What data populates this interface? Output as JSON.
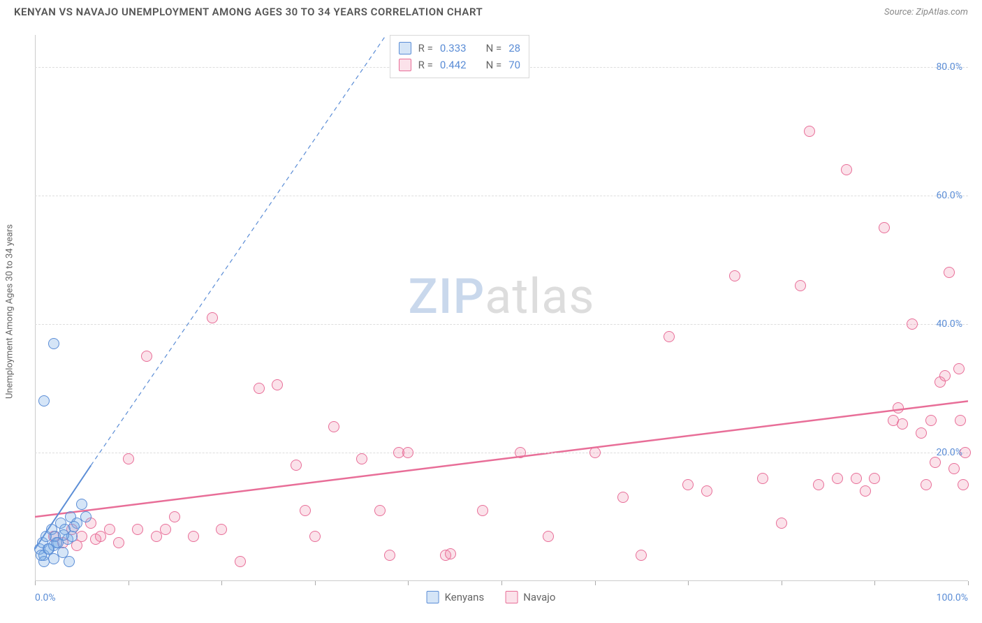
{
  "header": {
    "title": "KENYAN VS NAVAJO UNEMPLOYMENT AMONG AGES 30 TO 34 YEARS CORRELATION CHART",
    "source": "Source: ZipAtlas.com"
  },
  "watermark": {
    "part1": "ZIP",
    "part2": "atlas"
  },
  "chart": {
    "type": "scatter",
    "background_color": "#ffffff",
    "grid_color": "#dddddd",
    "axis_color": "#cccccc",
    "tick_label_color": "#5b8dd6",
    "axis_label_color": "#666666",
    "label_fontsize": 13,
    "tick_fontsize": 14,
    "ylabel": "Unemployment Among Ages 30 to 34 years",
    "xlim": [
      0,
      100
    ],
    "ylim": [
      0,
      85
    ],
    "xticks": [
      0,
      10,
      20,
      30,
      40,
      50,
      60,
      70,
      80,
      90,
      100
    ],
    "yticks": [
      20,
      40,
      60,
      80
    ],
    "ytick_labels": [
      "20.0%",
      "40.0%",
      "60.0%",
      "80.0%"
    ],
    "xtick_label_left": "0.0%",
    "xtick_label_right": "100.0%",
    "marker_radius": 8,
    "marker_stroke_width": 1.2,
    "series": {
      "kenyans": {
        "label": "Kenyans",
        "fill": "rgba(116,168,227,0.30)",
        "stroke": "#5b8dd6",
        "R": "0.333",
        "N": "28",
        "trend": {
          "x1": 0,
          "y1": 5,
          "x2": 6,
          "y2": 18,
          "dash_x2": 40,
          "dash_y2": 90,
          "stroke_width": 2,
          "dash": "6,5"
        },
        "points": [
          [
            0.5,
            5
          ],
          [
            0.8,
            6
          ],
          [
            1,
            4
          ],
          [
            1.2,
            7
          ],
          [
            1.5,
            5
          ],
          [
            1.8,
            8
          ],
          [
            2,
            5.5
          ],
          [
            2.2,
            7
          ],
          [
            2.5,
            6
          ],
          [
            2.8,
            9
          ],
          [
            3,
            4.5
          ],
          [
            3.2,
            8
          ],
          [
            3.5,
            6.5
          ],
          [
            3.8,
            10
          ],
          [
            4,
            7
          ],
          [
            4.5,
            9
          ],
          [
            5,
            12
          ],
          [
            5.5,
            10
          ],
          [
            1,
            3
          ],
          [
            2,
            3.5
          ],
          [
            0.7,
            4
          ],
          [
            1.4,
            5
          ],
          [
            2.3,
            6
          ],
          [
            3.1,
            7.2
          ],
          [
            4.2,
            8.5
          ],
          [
            2,
            37
          ],
          [
            1,
            28
          ],
          [
            3.7,
            3
          ]
        ]
      },
      "navajo": {
        "label": "Navajo",
        "fill": "rgba(235,125,160,0.22)",
        "stroke": "#e86e98",
        "R": "0.442",
        "N": "70",
        "trend": {
          "x1": 0,
          "y1": 10,
          "x2": 100,
          "y2": 28,
          "stroke_width": 2.5
        },
        "points": [
          [
            2,
            7
          ],
          [
            3,
            6
          ],
          [
            4,
            8
          ],
          [
            5,
            7
          ],
          [
            6,
            9
          ],
          [
            7,
            7
          ],
          [
            8,
            8
          ],
          [
            9,
            6
          ],
          [
            10,
            19
          ],
          [
            11,
            8
          ],
          [
            12,
            35
          ],
          [
            13,
            7
          ],
          [
            14,
            8
          ],
          [
            15,
            10
          ],
          [
            17,
            7
          ],
          [
            19,
            41
          ],
          [
            20,
            8
          ],
          [
            22,
            3
          ],
          [
            24,
            30
          ],
          [
            26,
            30.5
          ],
          [
            28,
            18
          ],
          [
            29,
            11
          ],
          [
            30,
            7
          ],
          [
            32,
            24
          ],
          [
            35,
            19
          ],
          [
            37,
            11
          ],
          [
            38,
            4
          ],
          [
            39,
            20
          ],
          [
            40,
            20
          ],
          [
            44,
            4
          ],
          [
            44.5,
            4.2
          ],
          [
            48,
            11
          ],
          [
            52,
            20
          ],
          [
            55,
            7
          ],
          [
            60,
            20
          ],
          [
            63,
            13
          ],
          [
            65,
            4
          ],
          [
            68,
            38
          ],
          [
            70,
            15
          ],
          [
            72,
            14
          ],
          [
            75,
            47.5
          ],
          [
            78,
            16
          ],
          [
            80,
            9
          ],
          [
            82,
            46
          ],
          [
            83,
            70
          ],
          [
            84,
            15
          ],
          [
            86,
            16
          ],
          [
            87,
            64
          ],
          [
            88,
            16
          ],
          [
            89,
            14
          ],
          [
            90,
            16
          ],
          [
            91,
            55
          ],
          [
            92,
            25
          ],
          [
            92.5,
            27
          ],
          [
            93,
            24.5
          ],
          [
            94,
            40
          ],
          [
            95,
            23
          ],
          [
            95.5,
            15
          ],
          [
            96,
            25
          ],
          [
            96.5,
            18.5
          ],
          [
            97,
            31
          ],
          [
            97.5,
            32
          ],
          [
            98,
            48
          ],
          [
            98.5,
            17.5
          ],
          [
            99,
            33
          ],
          [
            99.2,
            25
          ],
          [
            99.5,
            15
          ],
          [
            99.7,
            20
          ],
          [
            4.5,
            5.5
          ],
          [
            6.5,
            6.5
          ]
        ]
      }
    }
  },
  "legend_box": {
    "r_label": "R =",
    "n_label": "N ="
  }
}
